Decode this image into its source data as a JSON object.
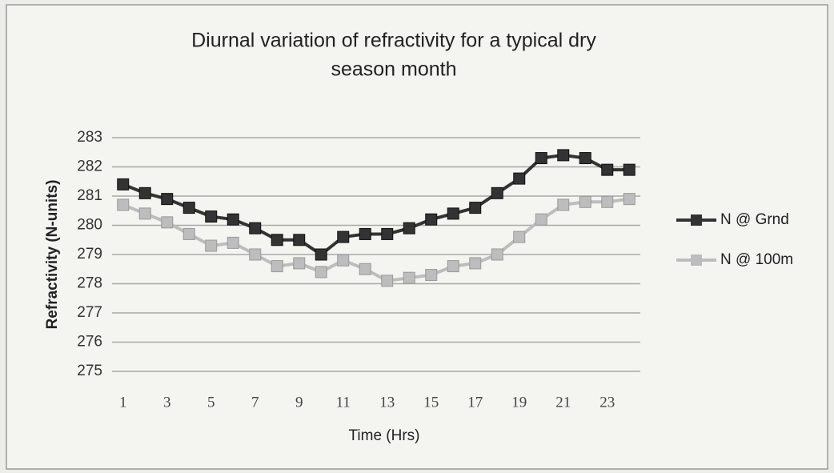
{
  "chart_data": {
    "type": "line",
    "title": "Diurnal variation of refractivity for a typical dry",
    "title_line2": "season month",
    "x_label": "Time (Hrs)",
    "y_label": "Refractivity (N-units)",
    "categories": [
      "1",
      null,
      "3",
      null,
      "5",
      null,
      "7",
      null,
      "9",
      null,
      "11",
      null,
      "13",
      null,
      "15",
      null,
      "17",
      null,
      "19",
      null,
      "21",
      null,
      "23",
      null
    ],
    "series": [
      {
        "name": "N @ Grnd",
        "color": "#333333",
        "values": [
          281.4,
          281.1,
          280.9,
          280.6,
          280.3,
          280.2,
          279.9,
          279.5,
          279.5,
          279.0,
          279.6,
          279.7,
          279.7,
          279.9,
          280.2,
          280.4,
          280.6,
          281.1,
          281.6,
          282.3,
          282.4,
          282.3,
          281.9,
          281.9
        ]
      },
      {
        "name": "N @ 100m",
        "color": "#bdbdbd",
        "values": [
          280.7,
          280.4,
          280.1,
          279.7,
          279.3,
          279.4,
          279.0,
          278.6,
          278.7,
          278.4,
          278.8,
          278.5,
          278.1,
          278.2,
          278.3,
          278.6,
          278.7,
          279.0,
          279.6,
          280.2,
          280.7,
          280.8,
          280.8,
          280.9
        ]
      }
    ],
    "ylim": [
      275,
      283
    ],
    "yticks": [
      275,
      276,
      277,
      278,
      279,
      280,
      281,
      282,
      283
    ],
    "grid": true,
    "legend": "right"
  }
}
